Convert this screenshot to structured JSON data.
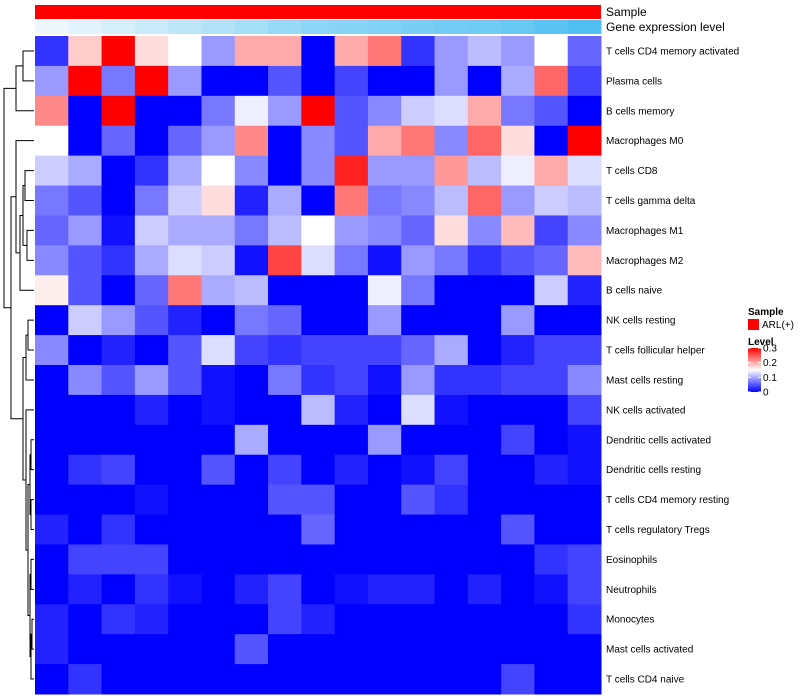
{
  "chart_data": {
    "type": "heatmap",
    "annotations": [
      {
        "name": "Sample"
      },
      {
        "name": "Gene expression level"
      }
    ],
    "rows": [
      "T cells CD4 memory activated",
      "Plasma cells",
      "B cells memory",
      "Macrophages M0",
      "T cells CD8",
      "T cells gamma delta",
      "Macrophages M1",
      "Macrophages M2",
      "B cells naive",
      "NK cells resting",
      "T cells follicular helper",
      "Mast cells resting",
      "NK cells activated",
      "Dendritic cells activated",
      "Dendritic cells resting",
      "T cells CD4 memory resting",
      "T cells regulatory  Tregs",
      "Eosinophils",
      "Neutrophils",
      "Monocytes",
      "Mast cells activated",
      "T cells CD4 naive"
    ],
    "n_columns": 17,
    "gene_expression_level": [
      0.3,
      0.35,
      0.4,
      0.45,
      0.5,
      0.55,
      0.6,
      0.65,
      0.7,
      0.72,
      0.75,
      0.78,
      0.8,
      0.82,
      0.85,
      0.9,
      0.95
    ],
    "values": [
      [
        0.03,
        0.18,
        0.3,
        0.17,
        0.15,
        0.09,
        0.2,
        0.2,
        0.0,
        0.2,
        0.23,
        0.03,
        0.09,
        0.11,
        0.09,
        0.15,
        0.06
      ],
      [
        0.09,
        0.3,
        0.07,
        0.3,
        0.09,
        0.0,
        0.0,
        0.05,
        0.0,
        0.04,
        0.0,
        0.0,
        0.09,
        0.0,
        0.1,
        0.24,
        0.04
      ],
      [
        0.22,
        0.0,
        0.3,
        0.0,
        0.0,
        0.07,
        0.14,
        0.09,
        0.3,
        0.05,
        0.08,
        0.12,
        0.13,
        0.2,
        0.07,
        0.05,
        0.0
      ],
      [
        0.15,
        0.0,
        0.06,
        0.0,
        0.06,
        0.09,
        0.22,
        0.0,
        0.08,
        0.05,
        0.2,
        0.23,
        0.08,
        0.24,
        0.17,
        0.0,
        0.3
      ],
      [
        0.12,
        0.1,
        0.0,
        0.03,
        0.1,
        0.15,
        0.08,
        0.0,
        0.08,
        0.28,
        0.09,
        0.09,
        0.21,
        0.11,
        0.14,
        0.2,
        0.13
      ],
      [
        0.07,
        0.05,
        0.0,
        0.07,
        0.12,
        0.17,
        0.02,
        0.1,
        0.0,
        0.23,
        0.07,
        0.08,
        0.11,
        0.24,
        0.09,
        0.12,
        0.11
      ],
      [
        0.06,
        0.09,
        0.01,
        0.12,
        0.1,
        0.1,
        0.07,
        0.11,
        0.15,
        0.09,
        0.08,
        0.06,
        0.17,
        0.08,
        0.19,
        0.04,
        0.08
      ],
      [
        0.08,
        0.05,
        0.03,
        0.1,
        0.13,
        0.12,
        0.01,
        0.26,
        0.13,
        0.07,
        0.01,
        0.09,
        0.07,
        0.03,
        0.05,
        0.06,
        0.19
      ],
      [
        0.16,
        0.05,
        0.0,
        0.06,
        0.23,
        0.1,
        0.11,
        0.0,
        0.0,
        0.0,
        0.14,
        0.07,
        0.0,
        0.0,
        0.0,
        0.12,
        0.02
      ],
      [
        0.0,
        0.12,
        0.09,
        0.05,
        0.02,
        0.0,
        0.07,
        0.06,
        0.0,
        0.0,
        0.09,
        0.0,
        0.0,
        0.0,
        0.09,
        0.0,
        0.0
      ],
      [
        0.08,
        0.0,
        0.02,
        0.0,
        0.05,
        0.13,
        0.04,
        0.03,
        0.04,
        0.04,
        0.04,
        0.06,
        0.1,
        0.0,
        0.02,
        0.04,
        0.04
      ],
      [
        0.0,
        0.08,
        0.05,
        0.09,
        0.05,
        0.01,
        0.0,
        0.07,
        0.03,
        0.04,
        0.01,
        0.09,
        0.03,
        0.03,
        0.04,
        0.04,
        0.08
      ],
      [
        0.0,
        0.0,
        0.0,
        0.02,
        0.0,
        0.01,
        0.0,
        0.0,
        0.11,
        0.02,
        0.0,
        0.13,
        0.01,
        0.0,
        0.0,
        0.0,
        0.04
      ],
      [
        0.0,
        0.0,
        0.0,
        0.0,
        0.0,
        0.0,
        0.1,
        0.0,
        0.0,
        0.0,
        0.09,
        0.0,
        0.0,
        0.0,
        0.04,
        0.0,
        0.01
      ],
      [
        0.0,
        0.03,
        0.04,
        0.0,
        0.0,
        0.05,
        0.0,
        0.04,
        0.0,
        0.02,
        0.0,
        0.01,
        0.04,
        0.0,
        0.0,
        0.02,
        0.01
      ],
      [
        0.0,
        0.0,
        0.0,
        0.01,
        0.0,
        0.0,
        0.0,
        0.05,
        0.05,
        0.0,
        0.0,
        0.05,
        0.03,
        0.0,
        0.0,
        0.0,
        0.0
      ],
      [
        0.02,
        0.0,
        0.03,
        0.0,
        0.0,
        0.0,
        0.0,
        0.0,
        0.06,
        0.0,
        0.0,
        0.0,
        0.0,
        0.0,
        0.05,
        0.0,
        0.0
      ],
      [
        0.0,
        0.04,
        0.04,
        0.04,
        0.0,
        0.0,
        0.0,
        0.0,
        0.0,
        0.0,
        0.0,
        0.0,
        0.0,
        0.0,
        0.0,
        0.03,
        0.04
      ],
      [
        0.0,
        0.02,
        0.0,
        0.03,
        0.01,
        0.0,
        0.02,
        0.04,
        0.0,
        0.01,
        0.02,
        0.02,
        0.0,
        0.02,
        0.0,
        0.01,
        0.04
      ],
      [
        0.02,
        0.0,
        0.03,
        0.02,
        0.0,
        0.0,
        0.0,
        0.04,
        0.02,
        0.0,
        0.0,
        0.0,
        0.0,
        0.0,
        0.0,
        0.0,
        0.03
      ],
      [
        0.02,
        0.0,
        0.0,
        0.0,
        0.0,
        0.0,
        0.05,
        0.0,
        0.0,
        0.0,
        0.0,
        0.0,
        0.0,
        0.0,
        0.0,
        0.0,
        0.0
      ],
      [
        0.0,
        0.03,
        0.0,
        0.0,
        0.0,
        0.0,
        0.0,
        0.0,
        0.0,
        0.0,
        0.0,
        0.0,
        0.0,
        0.0,
        0.04,
        0.0,
        0.0
      ]
    ],
    "color_scale": {
      "min": 0,
      "mid": 0.15,
      "max": 0.3,
      "low": "#0000ff",
      "mid_color": "#ffffff",
      "high": "#ff0000"
    },
    "legend": {
      "sample_title": "Sample",
      "sample_item": "ARL(+)",
      "sample_color": "#ff0000",
      "level_title": "Level",
      "level_ticks": [
        {
          "label": "0.3",
          "value": 0.3
        },
        {
          "label": "0.2",
          "value": 0.2
        },
        {
          "label": "0.1",
          "value": 0.1
        },
        {
          "label": "0",
          "value": 0
        }
      ]
    },
    "expression_color_low": "#eef8fc",
    "expression_color_high": "#4fbff2"
  }
}
